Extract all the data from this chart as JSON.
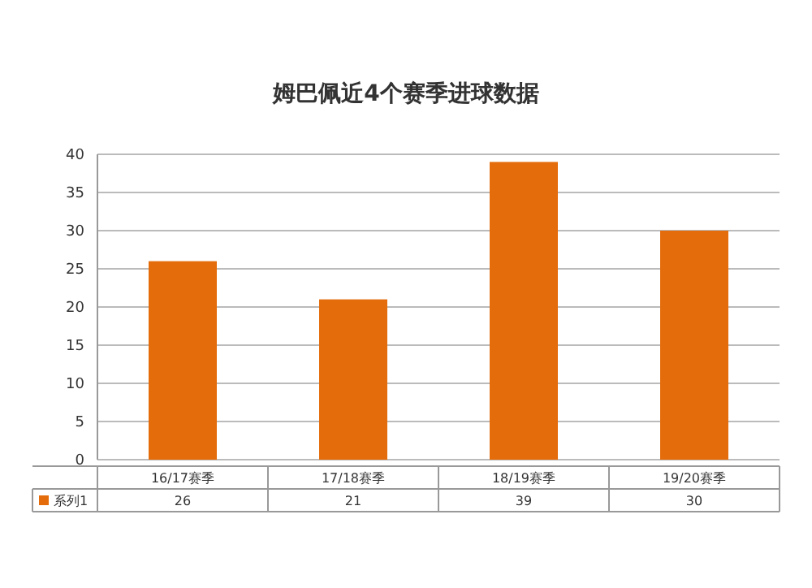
{
  "chart_data": {
    "type": "bar",
    "title": "姆巴佩近4个赛季进球数据",
    "categories": [
      "16/17赛季",
      "17/18赛季",
      "18/19赛季",
      "19/20赛季"
    ],
    "series": [
      {
        "name": "系列1",
        "color": "#e46c0a",
        "values": [
          26,
          21,
          39,
          30
        ]
      }
    ],
    "ylim": [
      0,
      40
    ],
    "yticks": [
      0,
      5,
      10,
      15,
      20,
      25,
      30,
      35,
      40
    ],
    "grid": "y",
    "legend": "bottom",
    "data_labels": true
  }
}
